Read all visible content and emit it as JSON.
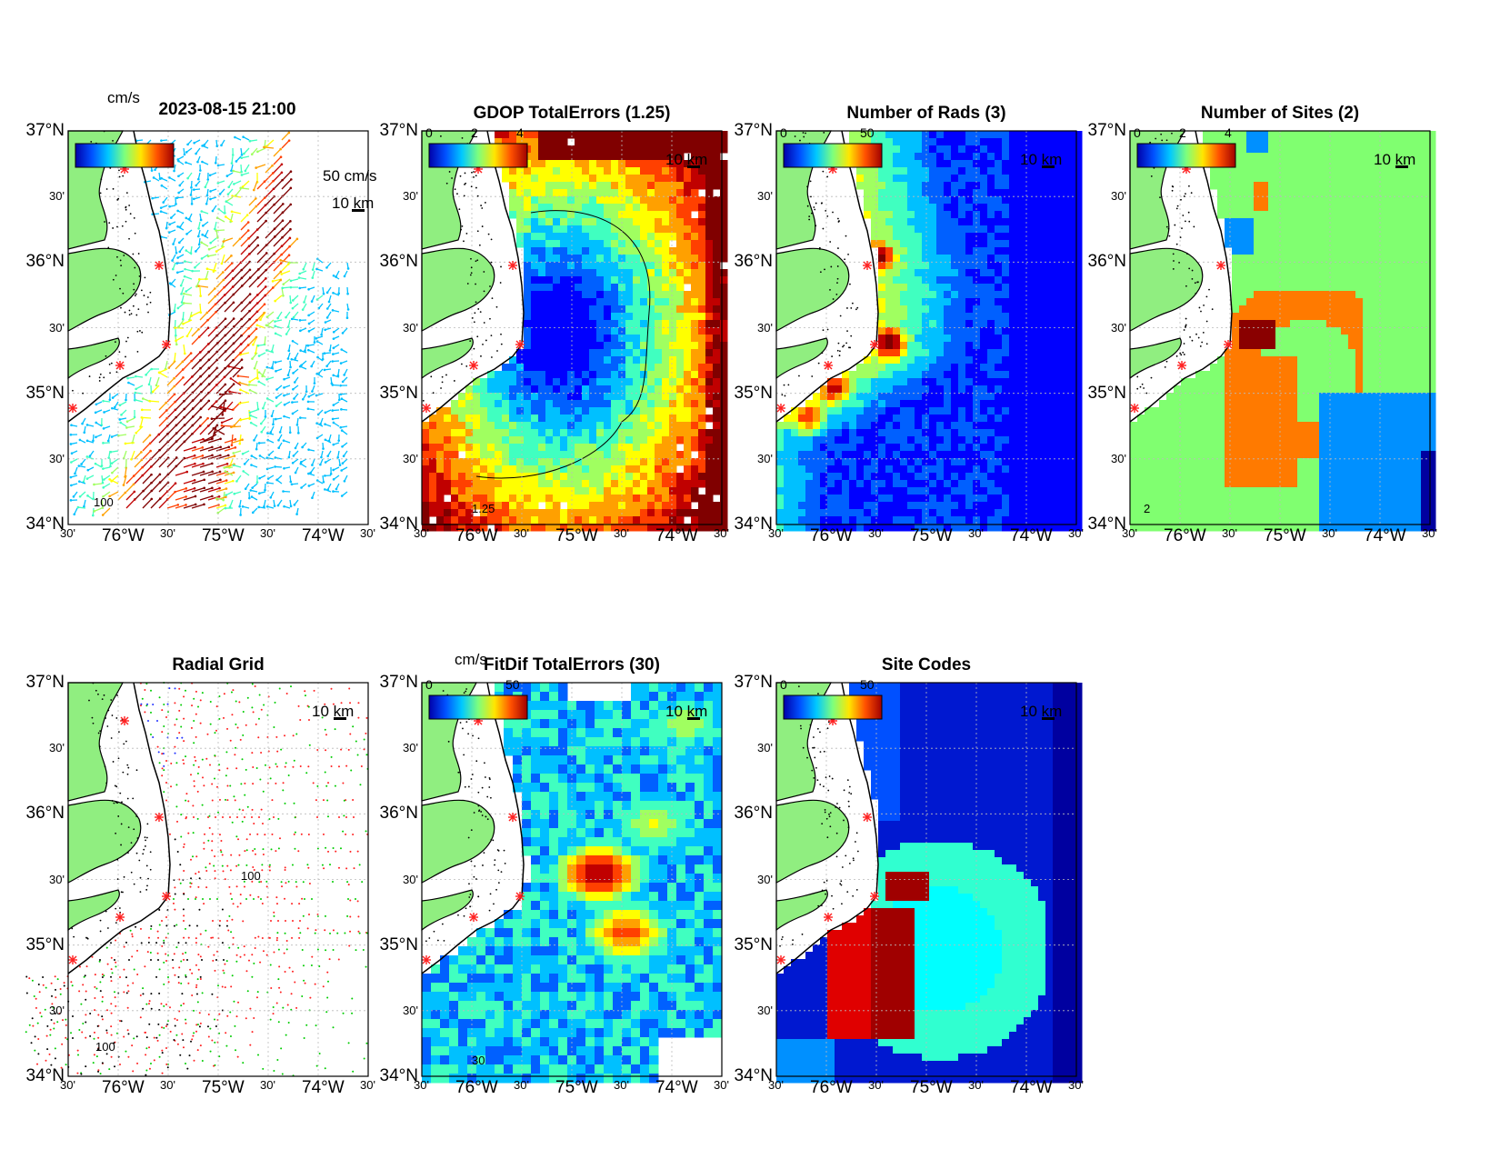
{
  "figure": {
    "timestamp": "2023-08-15 21:00",
    "units": "cm/s",
    "scale_label": "10 km",
    "vector_scale_label": "50 cm/s",
    "contour_100": "100"
  },
  "axes": {
    "lat_labels": [
      "37°N",
      "30'",
      "36°N",
      "30'",
      "35°N",
      "30'",
      "34°N"
    ],
    "lon_labels": [
      "30'",
      "76°W",
      "30'",
      "75°W",
      "30'",
      "74°W",
      "30'"
    ]
  },
  "panels": [
    {
      "id": "currents",
      "title": "",
      "colorbar": {
        "colors": [
          "#0000aa",
          "#0050ff",
          "#00c8ff",
          "#7dff7d",
          "#ffe600",
          "#ff5000",
          "#a00000"
        ],
        "ticks": []
      }
    },
    {
      "id": "gdop",
      "title": "GDOP TotalErrors (1.25)",
      "contour_label": "1.25",
      "colorbar": {
        "colors": [
          "#0000aa",
          "#0050ff",
          "#00c8ff",
          "#7dff7d",
          "#ffe600",
          "#ff5000",
          "#a00000"
        ],
        "ticks": [
          "0",
          "2",
          "4"
        ]
      }
    },
    {
      "id": "nrads",
      "title": "Number of Rads (3)",
      "colorbar": {
        "colors": [
          "#0000aa",
          "#0050ff",
          "#00c8ff",
          "#7dff7d",
          "#ffe600",
          "#ff5000",
          "#a00000"
        ],
        "ticks": [
          "0",
          "50"
        ]
      }
    },
    {
      "id": "nsites",
      "title": "Number of Sites (2)",
      "contour_label": "2",
      "colorbar": {
        "colors": [
          "#0000aa",
          "#0050ff",
          "#00c8ff",
          "#7dff7d",
          "#ffe600",
          "#ff5000",
          "#a00000"
        ],
        "ticks": [
          "0",
          "2",
          "4"
        ]
      }
    },
    {
      "id": "radgrid",
      "title": "Radial Grid",
      "colorbar": null
    },
    {
      "id": "fitdif",
      "title": "FitDif TotalErrors (30)",
      "contour_label": "30",
      "colorbar": {
        "colors": [
          "#0000aa",
          "#0050ff",
          "#00c8ff",
          "#7dff7d",
          "#ffe600",
          "#ff5000",
          "#a00000"
        ],
        "ticks": [
          "0",
          "50"
        ]
      }
    },
    {
      "id": "sitecodes",
      "title": "Site Codes",
      "colorbar": {
        "colors": [
          "#0000aa",
          "#0050ff",
          "#00c8ff",
          "#7dff7d",
          "#ffe600",
          "#ff5000",
          "#a00000"
        ],
        "ticks": [
          "0",
          "50"
        ]
      }
    }
  ],
  "colors": {
    "land": "#90ee80",
    "site_marker": "#ff2020",
    "grid_sites": [
      "#ff2020",
      "#00cc00",
      "#2030ff",
      "#000000"
    ]
  }
}
